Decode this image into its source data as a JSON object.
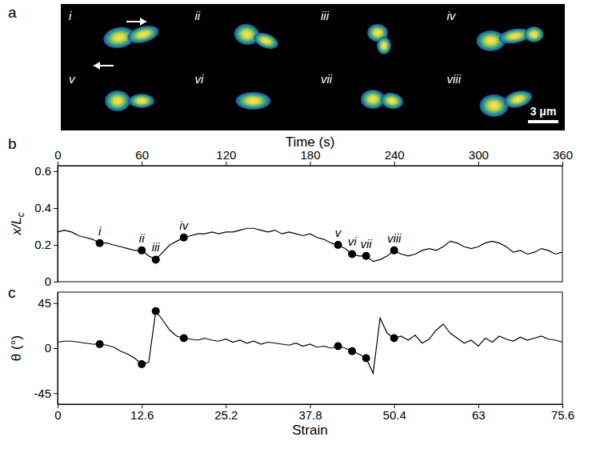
{
  "panel_a": {
    "panel": "a",
    "frames": [
      "i",
      "ii",
      "iii",
      "iv",
      "v",
      "vi",
      "vii",
      "viii"
    ],
    "scale_bar": "3 μm"
  },
  "chart_data": [
    {
      "type": "line",
      "panel": "b",
      "x_label": "Time (s)",
      "y_label": "x/Lc",
      "xlim": [
        0,
        360
      ],
      "xticks": [
        0,
        60,
        120,
        180,
        240,
        300,
        360
      ],
      "ylim": [
        0,
        0.63
      ],
      "yticks": [
        0,
        0.2,
        0.4,
        0.6
      ],
      "annotations": [
        "i",
        "ii",
        "iii",
        "iv",
        "v",
        "vi",
        "vii",
        "viii"
      ],
      "series": [
        {
          "type": "line",
          "color": "#000000",
          "line_style": "solid",
          "x": [
            0,
            5,
            10,
            15,
            20,
            25,
            30,
            35,
            40,
            45,
            50,
            55,
            60,
            65,
            70,
            75,
            80,
            85,
            90,
            95,
            100,
            105,
            110,
            115,
            120,
            125,
            130,
            135,
            140,
            145,
            150,
            155,
            160,
            165,
            170,
            175,
            180,
            185,
            190,
            195,
            200,
            205,
            210,
            215,
            220,
            225,
            230,
            235,
            240,
            245,
            250,
            255,
            260,
            265,
            270,
            275,
            280,
            285,
            290,
            295,
            300,
            305,
            310,
            315,
            320,
            325,
            330,
            335,
            340,
            345,
            350,
            355,
            360
          ],
          "values": [
            0.27,
            0.28,
            0.27,
            0.25,
            0.24,
            0.23,
            0.21,
            0.21,
            0.2,
            0.19,
            0.18,
            0.17,
            0.17,
            0.14,
            0.12,
            0.16,
            0.2,
            0.22,
            0.24,
            0.25,
            0.26,
            0.26,
            0.27,
            0.26,
            0.27,
            0.27,
            0.28,
            0.29,
            0.29,
            0.28,
            0.27,
            0.28,
            0.26,
            0.27,
            0.26,
            0.25,
            0.26,
            0.24,
            0.23,
            0.21,
            0.2,
            0.18,
            0.15,
            0.14,
            0.14,
            0.11,
            0.12,
            0.14,
            0.17,
            0.15,
            0.14,
            0.15,
            0.17,
            0.18,
            0.17,
            0.19,
            0.22,
            0.21,
            0.19,
            0.18,
            0.19,
            0.21,
            0.22,
            0.21,
            0.19,
            0.16,
            0.17,
            0.15,
            0.16,
            0.18,
            0.17,
            0.15,
            0.16
          ]
        },
        {
          "type": "scatter",
          "color": "#000000",
          "marker": "circle",
          "x": [
            30,
            60,
            70,
            90,
            200,
            210,
            220,
            240
          ],
          "values": [
            0.21,
            0.17,
            0.12,
            0.24,
            0.2,
            0.15,
            0.14,
            0.17
          ]
        }
      ]
    },
    {
      "type": "line",
      "panel": "c",
      "x_label": "Strain",
      "y_label": "θ (°)",
      "xlim": [
        0,
        75.6
      ],
      "xticks": [
        0,
        12.6,
        25.2,
        37.8,
        50.4,
        63,
        75.6
      ],
      "ylim": [
        -56,
        56
      ],
      "yticks": [
        -45,
        0,
        45
      ],
      "series": [
        {
          "type": "line",
          "color": "#000000",
          "line_style": "solid",
          "x": [
            0,
            1.05,
            2.1,
            3.15,
            4.2,
            5.25,
            6.3,
            7.35,
            8.4,
            9.45,
            10.5,
            11.55,
            12.6,
            13.65,
            14.7,
            15.75,
            16.8,
            17.85,
            18.9,
            19.95,
            21,
            22.05,
            23.1,
            24.15,
            25.2,
            26.25,
            27.3,
            28.35,
            29.4,
            30.45,
            31.5,
            32.55,
            33.6,
            34.65,
            35.7,
            36.75,
            37.8,
            38.85,
            39.9,
            40.95,
            42,
            43.05,
            44.1,
            45.15,
            46.2,
            47.25,
            48.3,
            49.35,
            50.4,
            51.45,
            52.5,
            53.55,
            54.6,
            55.65,
            56.7,
            57.75,
            58.8,
            59.85,
            60.9,
            61.95,
            63,
            64.05,
            65.1,
            66.15,
            67.2,
            68.25,
            69.3,
            70.35,
            71.4,
            72.45,
            73.5,
            74.55,
            75.6
          ],
          "values": [
            6,
            7,
            7,
            6,
            5,
            4,
            4,
            3,
            1,
            -3,
            -6,
            -10,
            -16,
            -14,
            37,
            28,
            18,
            12,
            10,
            9,
            8,
            10,
            8,
            7,
            9,
            6,
            8,
            5,
            7,
            4,
            6,
            5,
            4,
            3,
            5,
            2,
            4,
            1,
            2,
            0,
            2,
            0,
            -3,
            -6,
            -10,
            -25,
            30,
            15,
            10,
            12,
            8,
            13,
            5,
            9,
            18,
            24,
            15,
            10,
            5,
            8,
            2,
            10,
            6,
            12,
            9,
            7,
            11,
            8,
            10,
            12,
            9,
            8,
            6
          ]
        },
        {
          "type": "scatter",
          "color": "#000000",
          "marker": "circle",
          "x": [
            6.3,
            12.6,
            14.7,
            18.9,
            42,
            44.1,
            46.2,
            50.4
          ],
          "values": [
            4,
            -16,
            37,
            10,
            2,
            -3,
            -10,
            10
          ]
        }
      ]
    }
  ]
}
